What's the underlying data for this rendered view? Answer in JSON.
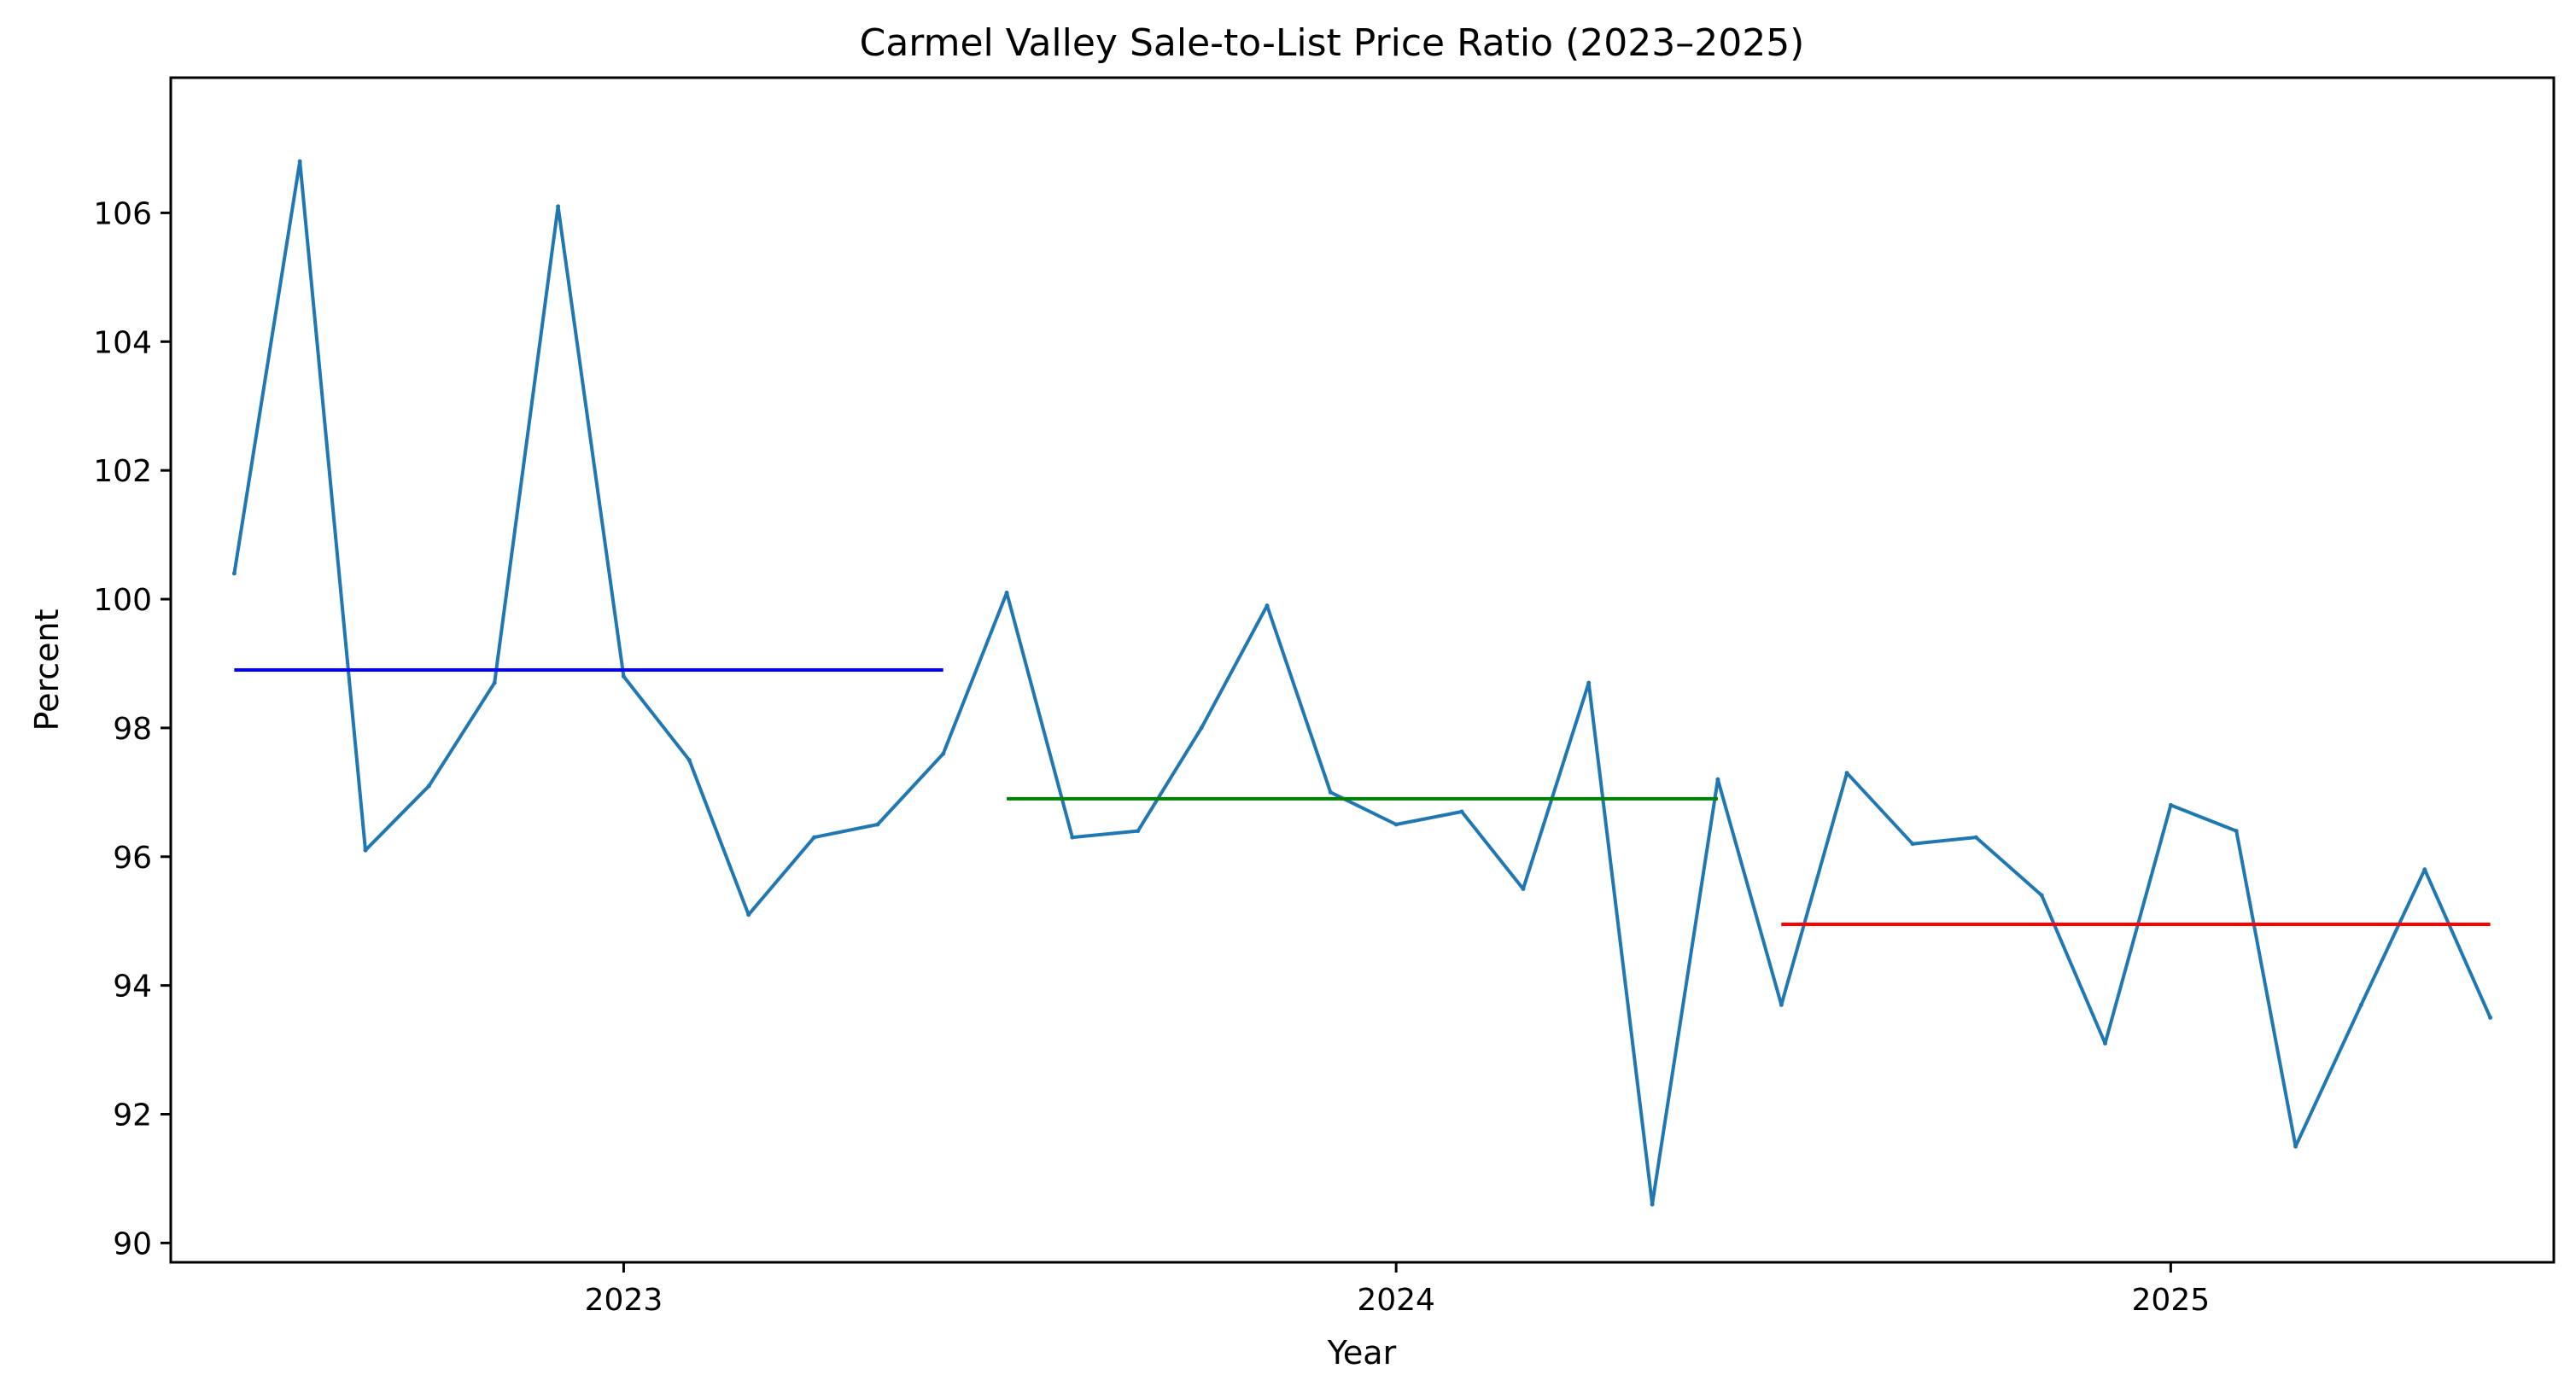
{
  "chart_data": {
    "type": "line",
    "title": "Carmel Valley Sale-to-List Price Ratio (2023–2025)",
    "xlabel": "Year",
    "ylabel": "Percent",
    "x": [
      "2022-07-01",
      "2022-08-01",
      "2022-09-01",
      "2022-10-01",
      "2022-11-01",
      "2022-12-01",
      "2023-01-01",
      "2023-02-01",
      "2023-03-01",
      "2023-04-01",
      "2023-05-01",
      "2023-06-01",
      "2023-07-01",
      "2023-08-01",
      "2023-09-01",
      "2023-10-01",
      "2023-11-01",
      "2023-12-01",
      "2024-01-01",
      "2024-02-01",
      "2024-03-01",
      "2024-04-01",
      "2024-05-01",
      "2024-06-01",
      "2024-07-01",
      "2024-08-01",
      "2024-09-01",
      "2024-10-01",
      "2024-11-01",
      "2024-12-01",
      "2025-01-01",
      "2025-02-01",
      "2025-03-01",
      "2025-04-01",
      "2025-05-01",
      "2025-06-01"
    ],
    "series": [
      {
        "color": "#1f77b4",
        "values": [
          100.4,
          106.8,
          96.1,
          97.1,
          98.7,
          106.1,
          98.8,
          97.5,
          95.1,
          96.3,
          96.5,
          97.6,
          100.1,
          96.3,
          96.4,
          98.0,
          99.9,
          97.0,
          96.5,
          96.7,
          95.5,
          98.7,
          90.6,
          97.2,
          93.7,
          97.3,
          96.2,
          96.3,
          95.4,
          93.1,
          96.8,
          96.4,
          91.5,
          93.7,
          95.8,
          93.5
        ]
      }
    ],
    "reference_lines": [
      {
        "color": "#0000ff",
        "value": 98.9,
        "x_start": "2022-07-01",
        "x_end": "2023-06-01"
      },
      {
        "color": "#008000",
        "value": 96.9,
        "x_start": "2023-07-01",
        "x_end": "2024-06-01"
      },
      {
        "color": "#ff0000",
        "value": 94.95,
        "x_start": "2024-07-01",
        "x_end": "2025-06-01"
      }
    ],
    "y_ticks": [
      "90",
      "92",
      "94",
      "96",
      "98",
      "100",
      "102",
      "104",
      "106"
    ],
    "x_ticks": [
      {
        "date": "2023-01-01",
        "label": "2023"
      },
      {
        "date": "2024-01-01",
        "label": "2024"
      },
      {
        "date": "2025-01-01",
        "label": "2025"
      }
    ],
    "xlim": [
      "2022-06-01",
      "2025-07-01"
    ],
    "ylim": [
      89.7,
      108.1
    ],
    "grid": false,
    "legend": false
  }
}
